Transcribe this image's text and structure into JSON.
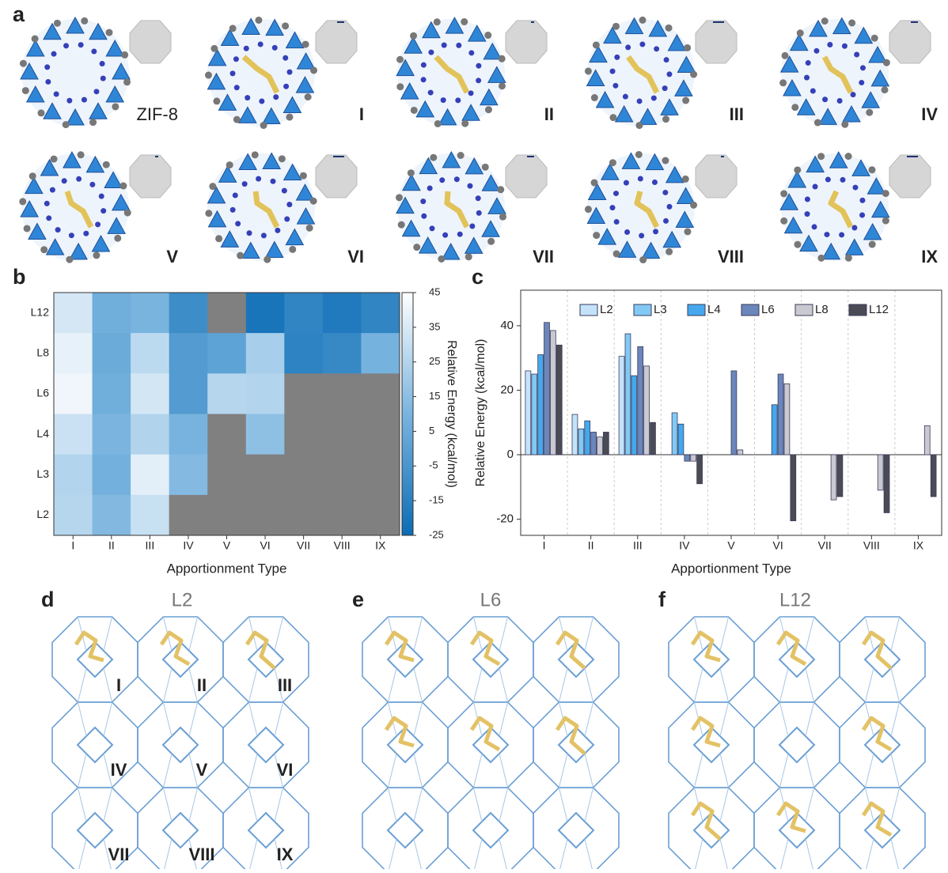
{
  "panels": {
    "a": {
      "label": "a",
      "structures": [
        "ZIF-8",
        "I",
        "II",
        "III",
        "IV",
        "V",
        "VI",
        "VII",
        "VIII",
        "IX"
      ]
    },
    "b": {
      "label": "b"
    },
    "c": {
      "label": "c"
    },
    "d": {
      "label": "d",
      "title": "L2",
      "types": [
        "I",
        "II",
        "III",
        "IV",
        "V",
        "VI",
        "VII",
        "VIII",
        "IX"
      ]
    },
    "e": {
      "label": "e",
      "title": "L6"
    },
    "f": {
      "label": "f",
      "title": "L12"
    }
  },
  "chart_data": [
    {
      "type": "heatmap",
      "x_label": "Apportionment Type",
      "categories": [
        "I",
        "II",
        "III",
        "IV",
        "V",
        "VI",
        "VII",
        "VIII",
        "IX"
      ],
      "rows": [
        "L12",
        "L8",
        "L6",
        "L4",
        "L3",
        "L2"
      ],
      "z": [
        [
          34,
          7,
          10,
          -9,
          null,
          -20.5,
          -13,
          -18,
          -13
        ],
        [
          38.5,
          5.5,
          27.5,
          -2,
          1.5,
          22,
          -14,
          -11,
          9
        ],
        [
          41,
          7,
          33.5,
          -2,
          26,
          25,
          null,
          null,
          null
        ],
        [
          31,
          10.5,
          24.5,
          9.5,
          null,
          15.5,
          null,
          null,
          null
        ],
        [
          25,
          8,
          37.5,
          13,
          null,
          null,
          null,
          null,
          null
        ],
        [
          26,
          12.5,
          30.5,
          null,
          null,
          null,
          null,
          null,
          null
        ]
      ],
      "colorbar_label": "Relative Energy (kcal/mol)",
      "zlim": [
        -25,
        45
      ],
      "zticks": [
        45,
        35,
        25,
        15,
        5,
        -5,
        -15,
        -25
      ],
      "colormap": [
        "#0b6cb4",
        "#79b4df",
        "#ffffff"
      ],
      "missing_color": "#808080"
    },
    {
      "type": "bar",
      "x_label": "Apportionment Type",
      "y_label": "Relative Energy (kcal/mol)",
      "categories": [
        "I",
        "II",
        "III",
        "IV",
        "V",
        "VI",
        "VII",
        "VIII",
        "IX"
      ],
      "series": [
        {
          "name": "L2",
          "color": "#c4e3fb",
          "values": [
            26,
            12.5,
            30.5,
            null,
            null,
            null,
            null,
            null,
            null
          ]
        },
        {
          "name": "L3",
          "color": "#82c9f5",
          "values": [
            25,
            8,
            37.5,
            13,
            null,
            null,
            null,
            null,
            null
          ]
        },
        {
          "name": "L4",
          "color": "#45a8ee",
          "values": [
            31,
            10.5,
            24.5,
            9.5,
            null,
            15.5,
            null,
            null,
            null
          ]
        },
        {
          "name": "L6",
          "color": "#6b86bb",
          "values": [
            41,
            7,
            33.5,
            -2,
            26,
            25,
            null,
            null,
            null
          ]
        },
        {
          "name": "L8",
          "color": "#c9c9d2",
          "values": [
            38.5,
            5.5,
            27.5,
            -2,
            1.5,
            22,
            -14,
            -11,
            9
          ]
        },
        {
          "name": "L12",
          "color": "#4b4b56",
          "values": [
            34,
            7,
            10,
            -9,
            null,
            -20.5,
            -13,
            -18,
            -13
          ]
        }
      ],
      "ylim": [
        -25,
        51
      ],
      "yticks": [
        -20,
        0,
        20,
        40
      ],
      "legend": "top"
    }
  ]
}
